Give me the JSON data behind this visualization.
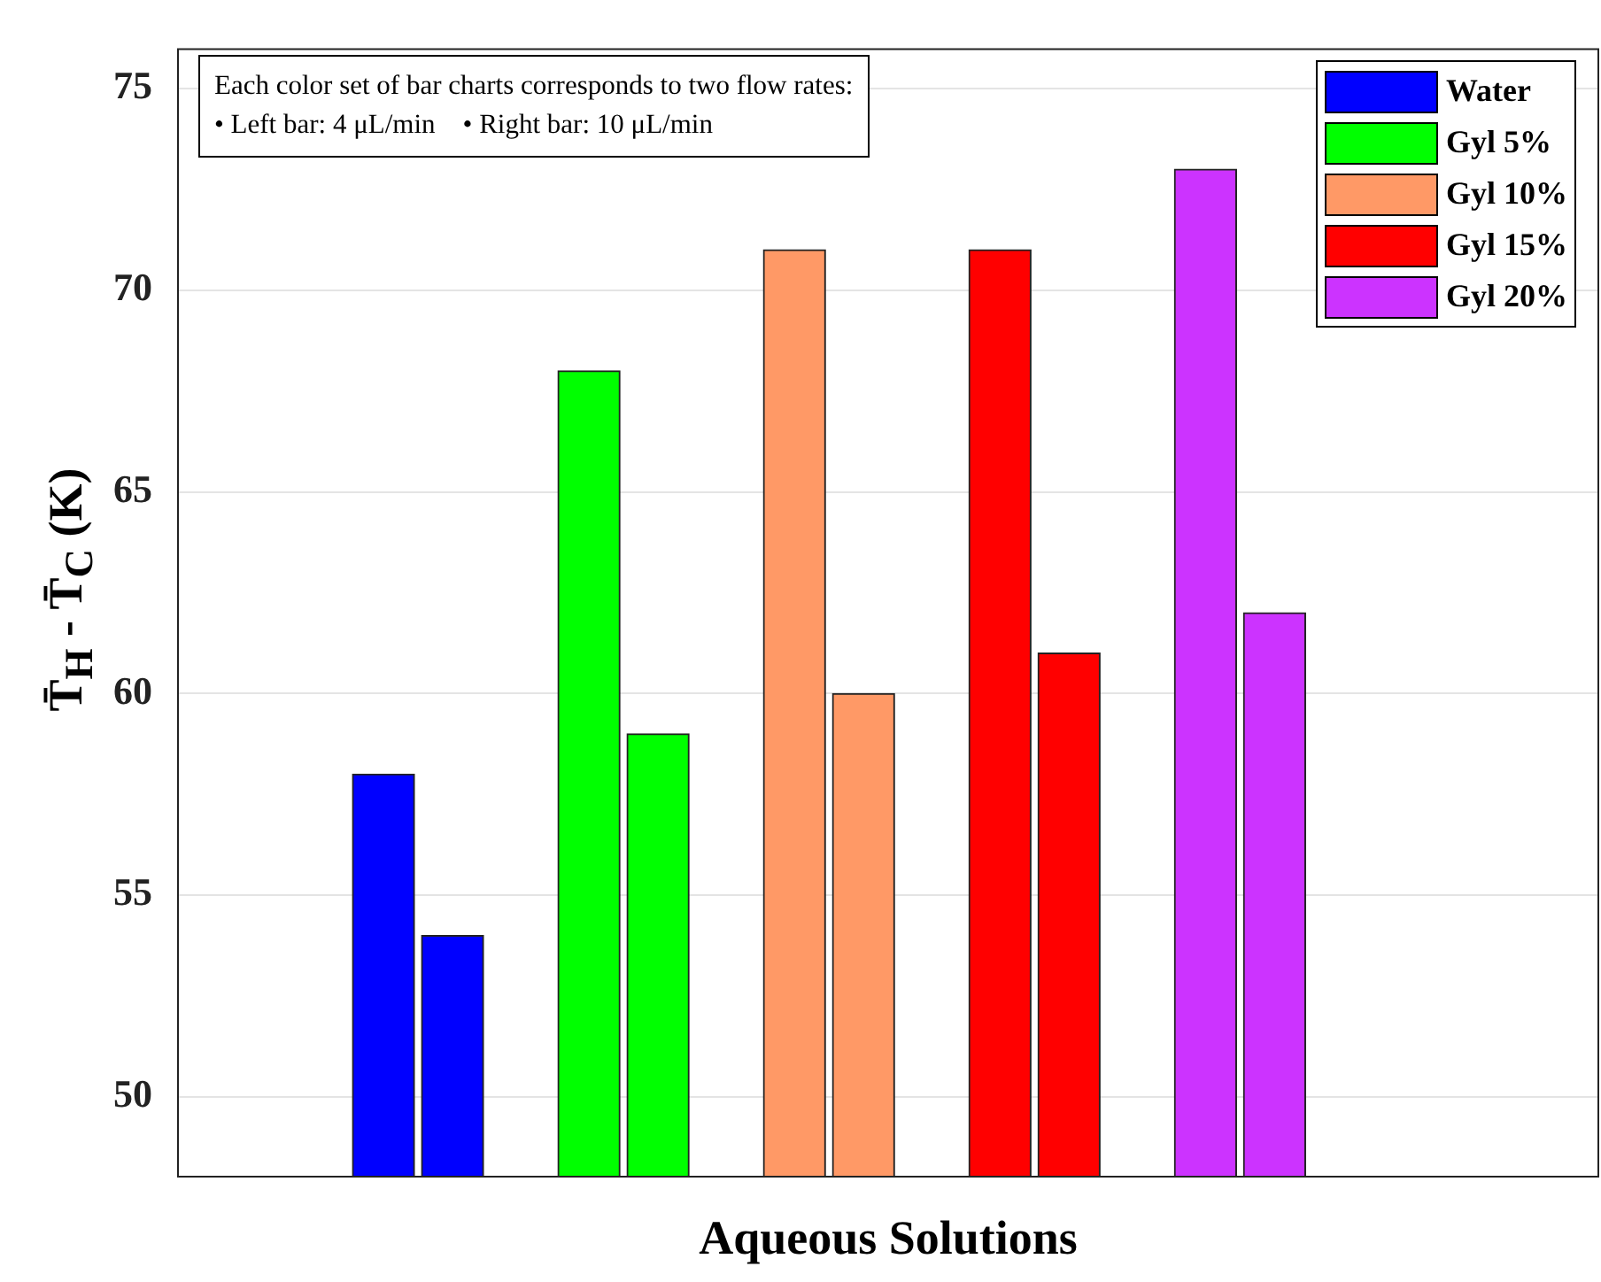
{
  "chart_data": {
    "type": "bar",
    "xlabel": "Aqueous Solutions",
    "ylabel": "T̄$_{H}$ - T̄$_{C}$ (K)",
    "annotations": [
      "Each color set of bar charts corresponds to two flow rates:\n• Left bar: 4 μL/min    • Right bar: 10 μL/min"
    ],
    "categories": [
      null,
      null,
      null,
      null,
      null,
      null,
      null,
      null,
      null,
      null
    ],
    "ylim": [
      48,
      76
    ],
    "yticks": [
      50,
      55,
      60,
      65,
      70,
      75
    ],
    "grid": "y",
    "stacked": true,
    "legend": "top right",
    "tick_labels": "y",
    "series": [
      {
        "name": "Water",
        "color": "#0000ff",
        "values": [
          58,
          54,
          null,
          null,
          null,
          null,
          null,
          null,
          null,
          null
        ]
      },
      {
        "name": "Gyl 5%",
        "color": "#00ff00",
        "values": [
          null,
          null,
          68,
          59,
          null,
          null,
          null,
          null,
          null,
          null
        ]
      },
      {
        "name": "Gyl 10%",
        "color": "#ff9966",
        "values": [
          null,
          null,
          null,
          null,
          71,
          60,
          null,
          null,
          null,
          null
        ]
      },
      {
        "name": "Gyl 15%",
        "color": "#ff0000",
        "values": [
          null,
          null,
          null,
          null,
          null,
          null,
          71,
          61,
          null,
          null
        ]
      },
      {
        "name": "Gyl 20%",
        "color": "#cc33ff",
        "values": [
          null,
          null,
          null,
          null,
          null,
          null,
          null,
          null,
          73,
          62
        ]
      }
    ]
  }
}
